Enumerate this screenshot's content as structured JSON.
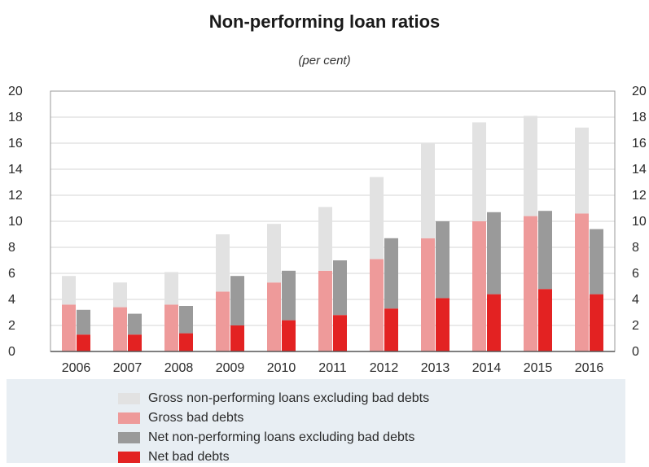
{
  "chart_data": {
    "type": "bar",
    "title": "Non-performing loan ratios",
    "subtitle": "(per cent)",
    "categories": [
      "2006",
      "2007",
      "2008",
      "2009",
      "2010",
      "2011",
      "2012",
      "2013",
      "2014",
      "2015",
      "2016"
    ],
    "ylim": [
      0,
      20
    ],
    "yticks": [
      0,
      2,
      4,
      6,
      8,
      10,
      12,
      14,
      16,
      18,
      20
    ],
    "ytick_labels": [
      "0",
      "2",
      "4",
      "6",
      "8",
      "10",
      "12",
      "14",
      "16",
      "18",
      "20"
    ],
    "grid": true,
    "legend_position": "bottom",
    "stacks": [
      {
        "bar": "left",
        "series": [
          {
            "name": "Gross bad debts",
            "color": "#ee9a9a",
            "values": [
              3.6,
              3.4,
              3.6,
              4.6,
              5.3,
              6.2,
              7.1,
              8.7,
              10.0,
              10.4,
              10.6
            ]
          },
          {
            "name": "Gross non-performing loans excluding bad debts",
            "color": "#e2e2e2",
            "values": [
              2.2,
              1.9,
              2.5,
              4.4,
              4.5,
              4.9,
              6.3,
              7.3,
              7.6,
              7.7,
              6.6
            ]
          }
        ]
      },
      {
        "bar": "right",
        "series": [
          {
            "name": "Net bad debts",
            "color": "#e32222",
            "values": [
              1.3,
              1.3,
              1.4,
              2.0,
              2.4,
              2.8,
              3.3,
              4.1,
              4.4,
              4.8,
              4.4
            ]
          },
          {
            "name": "Net non-performing loans excluding bad debts",
            "color": "#9a9a9a",
            "values": [
              1.9,
              1.6,
              2.1,
              3.8,
              3.8,
              4.2,
              5.4,
              5.9,
              6.3,
              6.0,
              5.0
            ]
          }
        ]
      }
    ]
  },
  "legend": [
    {
      "label": "Gross non-performing loans excluding bad debts",
      "color": "#e2e2e2"
    },
    {
      "label": "Gross bad debts",
      "color": "#ee9a9a"
    },
    {
      "label": "Net non-performing loans excluding bad debts",
      "color": "#9a9a9a"
    },
    {
      "label": "Net bad debts",
      "color": "#e32222"
    }
  ]
}
